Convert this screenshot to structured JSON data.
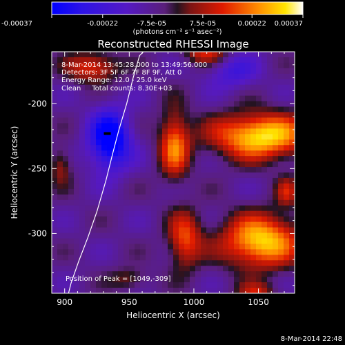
{
  "colorbar": {
    "ticks": [
      "-0.00037",
      "-0.00022",
      "-7.5e-05",
      "7.5e-05",
      "0.00022",
      "0.00037"
    ],
    "unit": "(photons cm⁻² s⁻¹ asec⁻²)",
    "range": [
      -0.00037,
      0.00037
    ]
  },
  "chart_data": {
    "type": "heatmap",
    "title": "Reconstructed RHESSI Image",
    "xlabel": "Heliocentric X (arcsec)",
    "ylabel": "Heliocentric Y (arcsec)",
    "xlim": [
      890,
      1078
    ],
    "ylim": [
      -346,
      -160
    ],
    "xticks": [
      900,
      950,
      1000,
      1050
    ],
    "yticks": [
      -200,
      -250,
      -300
    ],
    "annotations": [
      "8-Mar-2014 13:45:28.000 to 13:49:56.000",
      "Detectors: 3F 5F 6F 7F 8F 9F, Att 0",
      "Energy Range: 12.0 - 25.0 keV",
      "Clean     Total counts: 8.30E+03"
    ],
    "peak_label": "Position of Peak = [1049,-309]",
    "peak": [
      1049,
      -309
    ],
    "limb_curve_x": [
      903,
      905,
      911,
      918,
      925,
      932,
      937,
      942,
      948,
      953,
      958,
      961
    ],
    "limb_curve_y": [
      -346,
      -338,
      -321,
      -303,
      -283,
      -259,
      -239,
      -220,
      -200,
      -180,
      -163,
      -160
    ],
    "sources": [
      {
        "x": 1052,
        "y": -225,
        "sx": 26,
        "sy": 12,
        "amp": 1.0
      },
      {
        "x": 1052,
        "y": -306,
        "sx": 21,
        "sy": 14,
        "amp": 0.95
      },
      {
        "x": 985,
        "y": -232,
        "sx": 8,
        "sy": 18,
        "amp": 0.7
      },
      {
        "x": 993,
        "y": -305,
        "sx": 9,
        "sy": 15,
        "amp": 0.6
      },
      {
        "x": 922,
        "y": -172,
        "sx": 14,
        "sy": 8,
        "amp": 0.55
      },
      {
        "x": 1010,
        "y": -160,
        "sx": 12,
        "sy": 7,
        "amp": 0.5
      },
      {
        "x": 1072,
        "y": -268,
        "sx": 6,
        "sy": 8,
        "amp": 0.4
      },
      {
        "x": 897,
        "y": -248,
        "sx": 6,
        "sy": 10,
        "amp": 0.35
      },
      {
        "x": 950,
        "y": -335,
        "sx": 10,
        "sy": 6,
        "amp": 0.3
      },
      {
        "x": 1048,
        "y": -345,
        "sx": 10,
        "sy": 5,
        "amp": 0.4
      },
      {
        "x": 935,
        "y": -228,
        "sx": 11,
        "sy": 16,
        "amp": -0.9
      },
      {
        "x": 1030,
        "y": -175,
        "sx": 14,
        "sy": 10,
        "amp": -0.35
      }
    ]
  },
  "footer": {
    "timestamp": "8-Mar-2014 22:48"
  }
}
